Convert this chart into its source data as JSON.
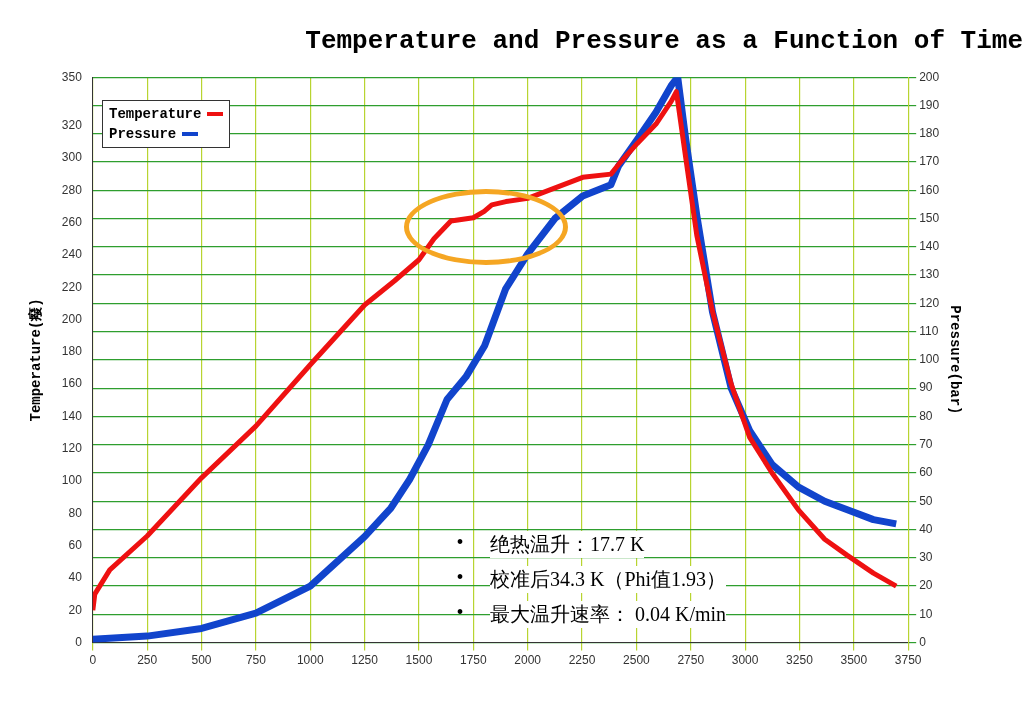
{
  "chart_data": {
    "type": "line",
    "title": "Temperature and Pressure as a Function of Time",
    "ylabel": "Temperature(癈)",
    "y2label": "Pressure(bar)",
    "xlim": [
      0,
      3750
    ],
    "xticks": [
      0,
      250,
      500,
      750,
      1000,
      1250,
      1500,
      1750,
      2000,
      2250,
      2500,
      2750,
      3000,
      3250,
      3500,
      3750
    ],
    "ylim": [
      0,
      350
    ],
    "yticks": [
      0,
      20,
      40,
      60,
      80,
      100,
      120,
      140,
      160,
      180,
      200,
      220,
      240,
      260,
      280,
      300,
      320,
      350
    ],
    "y2lim": [
      0,
      200
    ],
    "y2ticks": [
      0,
      10,
      20,
      30,
      40,
      50,
      60,
      70,
      80,
      90,
      100,
      110,
      120,
      130,
      140,
      150,
      160,
      170,
      180,
      190,
      200
    ],
    "grid": true,
    "legend": "top left",
    "annotations": [
      "• 绝热温升：17.7 K",
      "• 校准后34.3 K（Phi值1.93）",
      "• 最大温升速率： 0.04 K/min"
    ],
    "series": [
      {
        "name": "Temperature",
        "color": "#ee1111",
        "x": [
          0,
          9,
          78,
          250,
          500,
          750,
          1000,
          1250,
          1388,
          1500,
          1569,
          1647,
          1750,
          1800,
          1835,
          1900,
          2000,
          2253,
          2383,
          2418,
          2504,
          2590,
          2660,
          2684,
          2727,
          2778,
          2850,
          2936,
          3021,
          3124,
          3246,
          3366,
          3470,
          3590,
          3695
        ],
        "values": [
          20,
          30,
          45,
          66,
          102,
          134,
          172,
          209,
          224,
          237,
          250,
          261,
          263,
          267,
          271,
          273,
          275,
          288,
          290,
          296,
          309,
          321,
          335,
          341,
          300,
          252,
          205,
          160,
          127,
          105,
          82,
          64,
          54,
          43,
          35
        ]
      },
      {
        "name": "Pressure",
        "color": "#1144cc",
        "axis": "y2",
        "x": [
          0,
          250,
          500,
          750,
          1000,
          1250,
          1371,
          1457,
          1543,
          1629,
          1716,
          1802,
          1898,
          2000,
          2125,
          2253,
          2383,
          2418,
          2504,
          2590,
          2660,
          2690,
          2727,
          2778,
          2850,
          2936,
          3021,
          3124,
          3246,
          3366,
          3470,
          3590,
          3695
        ],
        "values": [
          1.2,
          2.3,
          5,
          10.4,
          20,
          37.5,
          47.6,
          57.7,
          70,
          86,
          94,
          105,
          125,
          137.5,
          150,
          158,
          162,
          168.6,
          178,
          187.6,
          197,
          200,
          178,
          151,
          117,
          90,
          75,
          63,
          55,
          50,
          47,
          43.5,
          42
        ]
      }
    ]
  }
}
